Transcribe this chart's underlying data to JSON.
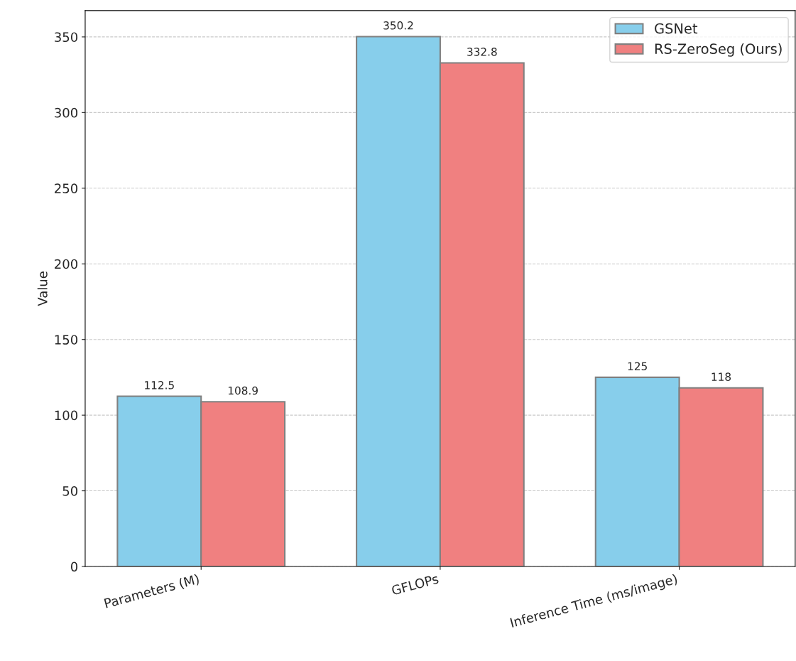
{
  "chart_data": {
    "type": "bar",
    "ylabel": "Value",
    "categories": [
      "Parameters (M)",
      "GFLOPs",
      "Inference Time (ms/image)"
    ],
    "series": [
      {
        "name": "GSNet",
        "color": "#87ceeb",
        "values": [
          112.5,
          350.2,
          125
        ]
      },
      {
        "name": "RS-ZeroSeg (Ours)",
        "color": "#f08080",
        "values": [
          108.9,
          332.8,
          118
        ]
      }
    ],
    "ylim": [
      0,
      367.4
    ],
    "yticks": [
      0,
      50,
      100,
      150,
      200,
      250,
      300,
      350
    ],
    "grid": "y",
    "legend": "top right",
    "data_labels": true
  }
}
